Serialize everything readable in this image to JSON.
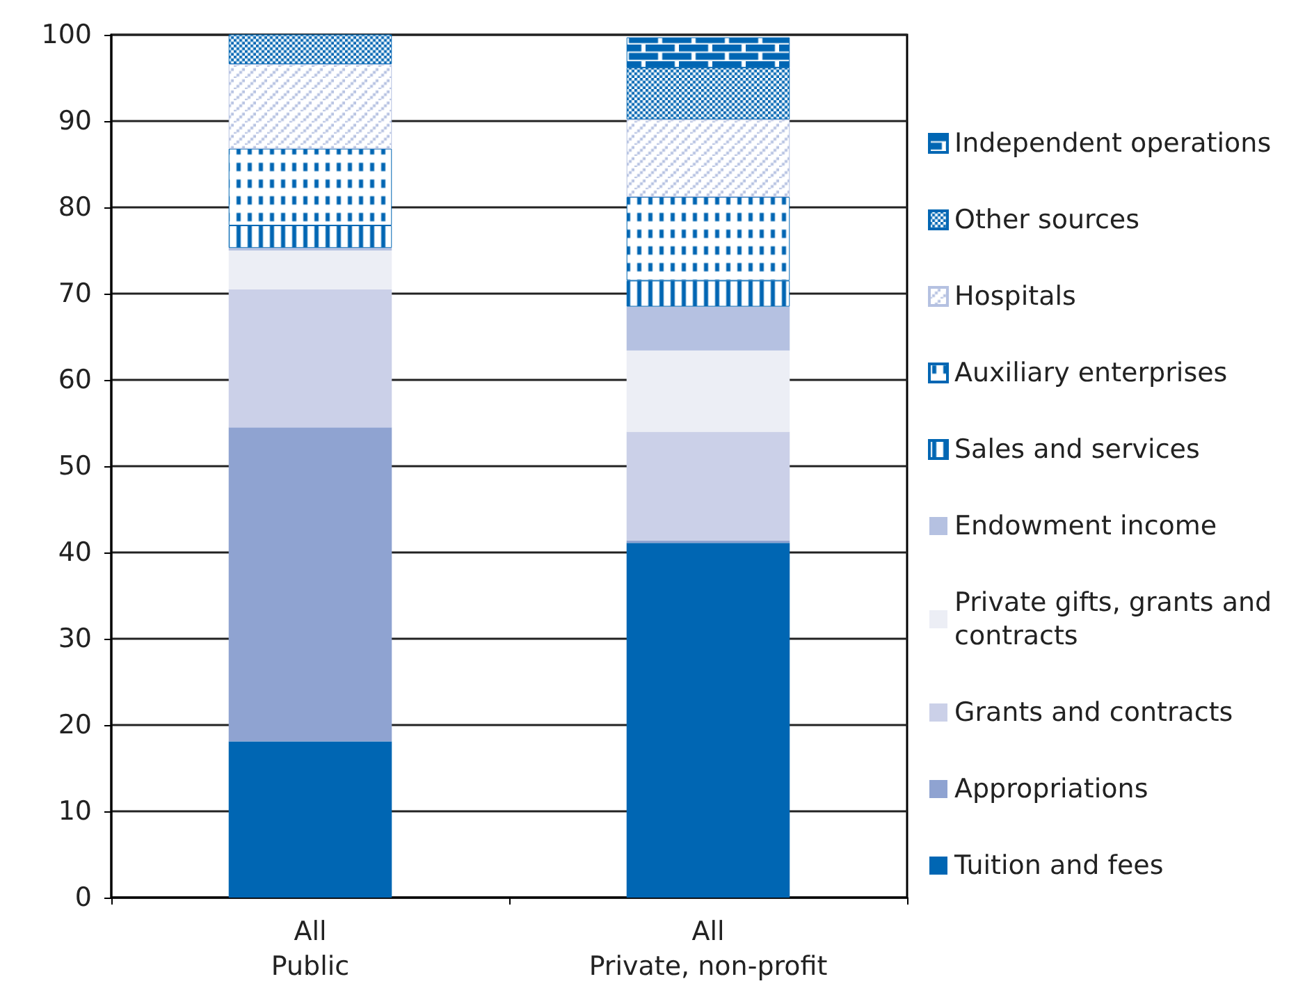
{
  "chart_data": {
    "type": "bar",
    "stacked": true,
    "categories": [
      "All\nPublic",
      "All\nPrivate, non-profit"
    ],
    "series": [
      {
        "name": "Tuition and fees",
        "color": "#0066b3",
        "values": [
          18.1,
          41.1
        ]
      },
      {
        "name": "Appropriations",
        "color": "#8fa3d1",
        "values": [
          36.4,
          0.3
        ]
      },
      {
        "name": "Grants and contracts",
        "color": "#cbd0e8",
        "values": [
          16.0,
          12.6
        ]
      },
      {
        "name": "Private gifts, grants and contracts",
        "color": "#eceef5",
        "values": [
          4.5,
          9.4
        ]
      },
      {
        "name": "Endowment income",
        "color": "#b5c1e1",
        "values": [
          0.3,
          5.1
        ]
      },
      {
        "name": "Sales and services",
        "color": "#0066b3",
        "values": [
          2.6,
          3.0
        ]
      },
      {
        "name": "Auxiliary enterprises",
        "color": "#0066b3",
        "values": [
          8.9,
          9.7
        ]
      },
      {
        "name": "Hospitals",
        "color": "#b5c1e1",
        "values": [
          9.8,
          9.0
        ]
      },
      {
        "name": "Other sources",
        "color": "#0066b3",
        "values": [
          3.5,
          6.0
        ]
      },
      {
        "name": "Independent operations",
        "color": "#0066b3",
        "values": [
          0,
          3.5
        ]
      }
    ],
    "ylim": [
      0,
      100
    ],
    "yticks": [
      0,
      10,
      20,
      30,
      40,
      50,
      60,
      70,
      80,
      90,
      100
    ],
    "grid": "y",
    "legend": "right"
  }
}
